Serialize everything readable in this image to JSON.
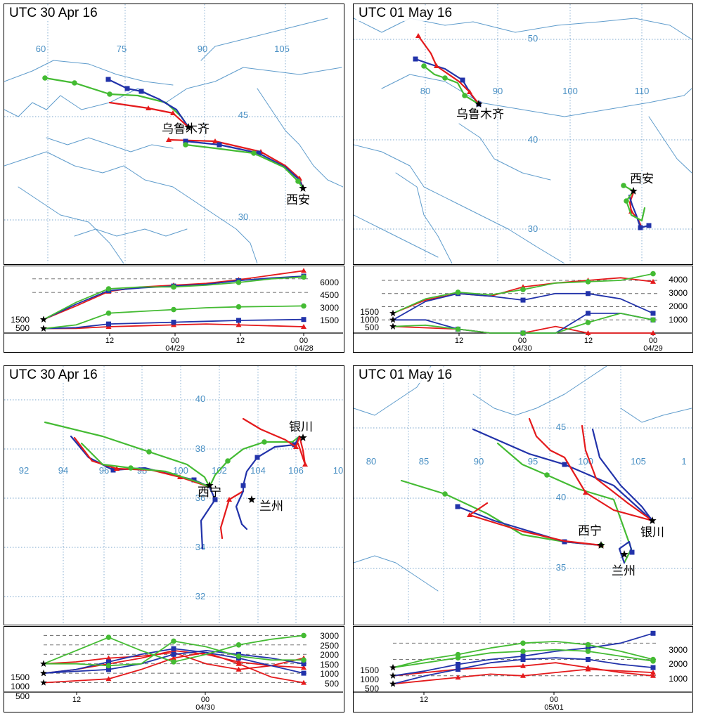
{
  "colors": {
    "red": "#e41a1c",
    "blue": "#2233aa",
    "green": "#44bb33",
    "grid": "#7aa6cc",
    "border": "#5f9ccc",
    "dash": "#666666"
  },
  "panels": [
    {
      "id": "p1",
      "title": "UTC 30 Apr 16",
      "lon_labels": [
        "60",
        "75",
        "90",
        "105"
      ],
      "lat_labels": [
        "45",
        "30"
      ],
      "cities": [
        "乌鲁木齐",
        "西安"
      ],
      "left_alt_labels": [
        "1500",
        "500"
      ],
      "right_alt_labels": [
        "6000",
        "4500",
        "3000",
        "1500"
      ],
      "time_ticks": [
        "12",
        "00",
        "12",
        "00"
      ],
      "date_labels": [
        "04/29",
        "04/28"
      ]
    },
    {
      "id": "p2",
      "title": "UTC 01 May 16",
      "lon_labels": [
        "80",
        "90",
        "100",
        "110"
      ],
      "lat_labels": [
        "50",
        "40",
        "30"
      ],
      "cities": [
        "乌鲁木齐",
        "西安"
      ],
      "left_alt_labels": [
        "1500",
        "1000",
        "500"
      ],
      "right_alt_labels": [
        "4000",
        "3000",
        "2000",
        "1000"
      ],
      "time_ticks": [
        "12",
        "00",
        "12",
        "00"
      ],
      "date_labels": [
        "04/30",
        "04/29"
      ]
    },
    {
      "id": "p3",
      "title": "UTC 30 Apr 16",
      "lon_labels": [
        "92",
        "94",
        "96",
        "98",
        "100",
        "102",
        "104",
        "106",
        "10"
      ],
      "lat_labels": [
        "40",
        "38",
        "36",
        "34",
        "32"
      ],
      "cities": [
        "银川",
        "西宁",
        "兰州"
      ],
      "left_alt_labels": [
        "1500",
        "1000",
        "500"
      ],
      "right_alt_labels": [
        "3000",
        "2500",
        "2000",
        "1500",
        "1000",
        "500"
      ],
      "time_ticks": [
        "12",
        "00"
      ],
      "date_labels": [
        "04/30"
      ]
    },
    {
      "id": "p4",
      "title": "UTC 01 May 16",
      "lon_labels": [
        "80",
        "85",
        "90",
        "95",
        "100",
        "105",
        "1"
      ],
      "lat_labels": [
        "45",
        "40",
        "35"
      ],
      "cities": [
        "银川",
        "西宁",
        "兰州"
      ],
      "left_alt_labels": [
        "1500",
        "1000",
        "500"
      ],
      "right_alt_labels": [
        "3000",
        "2000",
        "1000"
      ],
      "time_ticks": [
        "12",
        "00"
      ],
      "date_labels": [
        "05/01"
      ]
    }
  ],
  "chart_data": [
    {
      "type": "line",
      "title": "UTC 30 Apr 16",
      "series": [
        {
          "values": [
            500,
            520,
            700,
            800,
            900,
            1000,
            900,
            800,
            700
          ]
        },
        {
          "values": [
            500,
            600,
            1000,
            1100,
            1200,
            1300,
            1400,
            1450,
            1500
          ]
        },
        {
          "values": [
            500,
            900,
            2200,
            2400,
            2600,
            2800,
            2900,
            2950,
            3000
          ]
        },
        {
          "values": [
            1500,
            3000,
            4600,
            5100,
            5300,
            5500,
            5900,
            6400,
            6900
          ]
        },
        {
          "values": [
            1500,
            3200,
            4700,
            5000,
            5200,
            5400,
            5800,
            6100,
            6300
          ]
        },
        {
          "values": [
            1500,
            3400,
            4900,
            5100,
            5100,
            5300,
            5600,
            6000,
            6200
          ]
        }
      ]
    },
    {
      "type": "line",
      "title": "UTC 01 May 16",
      "series": [
        {
          "values": [
            500,
            400,
            300,
            0,
            0,
            500,
            0,
            0,
            0
          ]
        },
        {
          "values": [
            1000,
            1000,
            300,
            0,
            0,
            0,
            1500,
            1500,
            1000
          ]
        },
        {
          "values": [
            500,
            600,
            300,
            0,
            0,
            0,
            800,
            1500,
            1000
          ]
        },
        {
          "values": [
            1500,
            2500,
            3000,
            2800,
            3500,
            3800,
            4000,
            4200,
            3900
          ]
        },
        {
          "values": [
            1000,
            2400,
            3000,
            2800,
            2500,
            3000,
            3000,
            2600,
            1500
          ]
        },
        {
          "values": [
            1500,
            2600,
            3100,
            2900,
            3300,
            3800,
            3900,
            4000,
            4500
          ]
        }
      ]
    },
    {
      "type": "line",
      "title": "UTC 30 Apr 16",
      "series": [
        {
          "values": [
            500,
            600,
            700,
            1200,
            1800,
            2100,
            1500,
            800,
            500
          ]
        },
        {
          "values": [
            1000,
            1200,
            1500,
            1800,
            2200,
            2000,
            1600,
            1400,
            1300
          ]
        },
        {
          "values": [
            1500,
            1600,
            1800,
            1900,
            2100,
            1500,
            1200,
            1400,
            1800
          ]
        },
        {
          "values": [
            1000,
            1100,
            1200,
            1500,
            2000,
            2200,
            2000,
            1800,
            1500
          ]
        },
        {
          "values": [
            1000,
            1200,
            1600,
            2000,
            2300,
            2100,
            1800,
            1400,
            1000
          ]
        },
        {
          "values": [
            1500,
            2200,
            2900,
            2200,
            1600,
            2000,
            2500,
            2800,
            3000
          ]
        },
        {
          "values": [
            1500,
            1500,
            1400,
            1500,
            2700,
            2400,
            1900,
            1700,
            1700
          ]
        }
      ]
    },
    {
      "type": "line",
      "title": "UTC 01 May 16",
      "series": [
        {
          "values": [
            500,
            700,
            900,
            1100,
            1000,
            1200,
            1400,
            1300,
            1200
          ]
        },
        {
          "values": [
            1000,
            1200,
            1400,
            1500,
            1600,
            1800,
            1500,
            1200,
            1000
          ]
        },
        {
          "values": [
            1000,
            1300,
            1700,
            2000,
            2200,
            2500,
            2700,
            3000,
            3600
          ]
        },
        {
          "values": [
            500,
            1000,
            1400,
            1800,
            2000,
            2100,
            2000,
            1700,
            1500
          ]
        },
        {
          "values": [
            1500,
            2000,
            2300,
            2700,
            3000,
            3100,
            2900,
            2500,
            2000
          ]
        },
        {
          "values": [
            1500,
            1800,
            2100,
            2400,
            2500,
            2600,
            2500,
            2200,
            1900
          ]
        }
      ]
    }
  ]
}
